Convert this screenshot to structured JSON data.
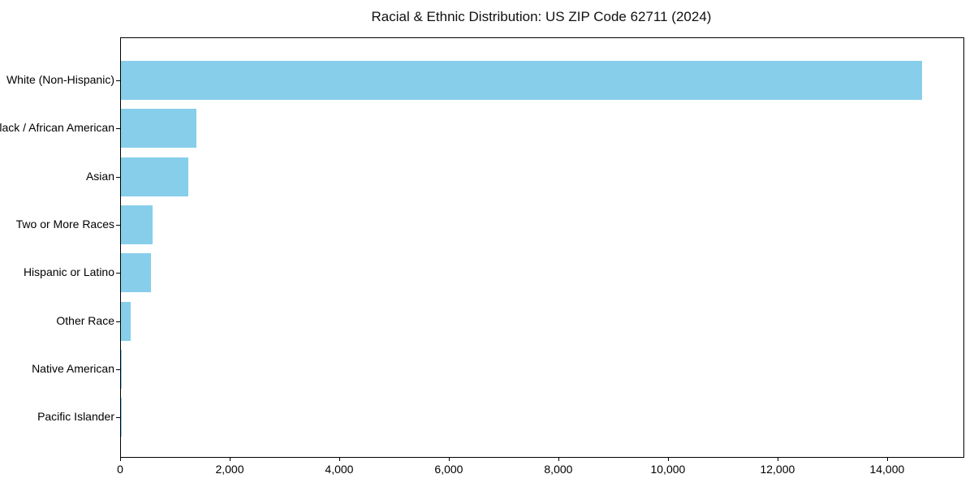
{
  "chart_data": {
    "type": "bar",
    "orientation": "horizontal",
    "title": "Racial & Ethnic Distribution: US ZIP Code 62711 (2024)",
    "categories": [
      "White (Non-Hispanic)",
      "Black / African American",
      "Asian",
      "Two or More Races",
      "Hispanic or Latino",
      "Other Race",
      "Native American",
      "Pacific Islander"
    ],
    "values": [
      14620,
      1375,
      1225,
      575,
      545,
      175,
      15,
      5
    ],
    "xlabel": "",
    "ylabel": "",
    "xlim": [
      0,
      15380
    ],
    "x_ticks": [
      0,
      2000,
      4000,
      6000,
      8000,
      10000,
      12000,
      14000
    ],
    "x_tick_labels": [
      "0",
      "2,000",
      "4,000",
      "6,000",
      "8,000",
      "10,000",
      "12,000",
      "14,000"
    ],
    "grid": false,
    "legend": false,
    "bar_color": "#87CEEB",
    "background_color": "#ffffff",
    "spine_color": "#000000"
  }
}
